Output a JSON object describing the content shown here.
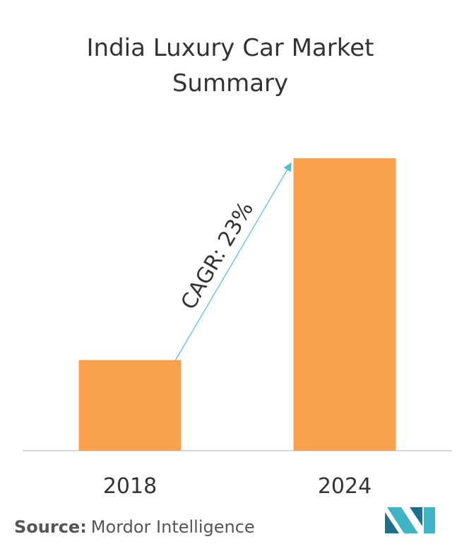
{
  "chart_data": {
    "type": "bar",
    "title": [
      "India Luxury Car Market",
      "Summary"
    ],
    "categories": [
      "2018",
      "2024"
    ],
    "values": [
      31,
      100
    ],
    "color": "#f9a04a",
    "ylim": [
      0,
      100
    ],
    "annotation": "CAGR: 23%",
    "source_label": "Source:",
    "source": "Mordor Intelligence"
  }
}
